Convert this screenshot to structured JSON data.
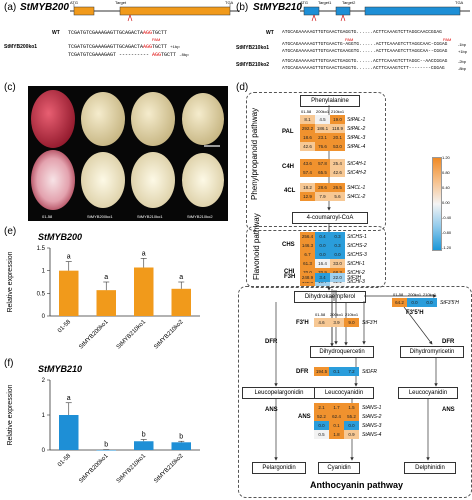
{
  "panels": {
    "a": {
      "label": "(a)",
      "gene": "StMYB200",
      "atg": "ATG",
      "tga": "TGA",
      "target": "Target",
      "wt_label": "WT",
      "wt_seq": "TCGATGTCGAAAGAGTTGCAGACTA",
      "wt_pam": "AGG",
      "wt_end": "TGCTT",
      "pam": "PAM",
      "ko_label": "StMYB200ko1",
      "ko_seq1": "TCGATGTCGAAAGAGTTGCAGACTA",
      "ko_pam1": "AGG",
      "ko_end1": "TGCTT",
      "ko_note1": "+1bp",
      "ko_seq2": "TCGATGTCGAAAGAGT ---------- ",
      "ko_pam2": "AGG",
      "ko_end2": "TGCTT",
      "ko_note2": "-8bp"
    },
    "b": {
      "label": "(b)",
      "gene": "StMYB210",
      "atg": "ATG",
      "tga": "TGA",
      "target1": "Target1",
      "target2": "Target2",
      "wt_label": "WT",
      "wt_seq": "ATGCAGAAAAAGTTGTGAACTGAGGTG......ACTTCAAAGTCTTAGGCAACCGGAG",
      "pam": "PAM",
      "ko1_label": "StMYB210ko1",
      "ko1_seq1": "ATGCAGAAAAAGTTGTGAACTG-AGGTG......ACTTCAAAGTCTTAGGCAAC-CGGAG",
      "ko1_seq2": "ATGCAGAAAAAGTTGTGAACTGAAGGTG......ACTTCAAAGTCTTAGGCAA--CGGAG",
      "ko1_note1": "-1bp",
      "ko1_note2": "+1bp",
      "ko2_label": "StMYB210ko2",
      "ko2_seq1": "ATGCAGAAAAAGTTGTGAACTGAGGTG......ACTTCAAAGTCTTAGGC--AACCGGAG",
      "ko2_seq2": "ATGCAGAAAAAGTTGTGAACTGAGGTG......ACTTCAAAGTCTT--------CGGAG",
      "ko2_note1": "-2bp",
      "ko2_note2": "-8bp"
    },
    "c": {
      "label": "(c)",
      "tubers": [
        "01-58",
        "StMYB200ko1",
        "StMYB210ko1",
        "StMYB210ko2"
      ]
    },
    "d": {
      "label": "(d)",
      "pathway1": "Phenylpropanoid pathway",
      "pathway2": "Flavonoid pathway",
      "pathway3": "Anthocyanin pathway",
      "metabolites": {
        "phe": "Phenylalanine",
        "coa": "4-coumaroyl-CoA",
        "dhk": "Dihydrokaempferol",
        "dhq": "Dihydroquercetin",
        "dhm": "Dihydromyricetin",
        "lpel": "Leucopelargonidin",
        "lcya": "Leucocyanidin",
        "ldel": "Leucocyanidin",
        "pel": "Pelargonidin",
        "cya": "Cyanidin",
        "del": "Delphinidin"
      },
      "enzymes": [
        "PAL",
        "C4H",
        "4CL",
        "CHS",
        "CHI",
        "F3H",
        "F3'H",
        "F3'5'H",
        "DFR",
        "DFR",
        "DFR",
        "ANS",
        "ANS",
        "ANS"
      ],
      "col_heads": [
        "01-58",
        "200ko1",
        "210ko1"
      ],
      "legend": {
        "max": "1.20",
        "v1": "0.80",
        "v2": "0.40",
        "v3": "0.00",
        "v4": "-0.40",
        "v5": "-0.80",
        "min": "-1.20"
      },
      "pal": {
        "genes": [
          "StPAL-1",
          "StPAL-2",
          "StPAL-3",
          "StPAL-4"
        ],
        "vals": [
          [
            "8.1",
            "4.5",
            "19.0"
          ],
          [
            "292.2",
            "186.1",
            "118.9"
          ],
          [
            "18.6",
            "23.1",
            "20.1"
          ],
          [
            "42.6",
            "76.6",
            "53.0"
          ]
        ]
      },
      "c4h": {
        "genes": [
          "StC4H-1",
          "StC4H-2"
        ],
        "vals": [
          [
            "43.6",
            "57.8",
            "25.4"
          ],
          [
            "57.4",
            "65.5",
            "42.6"
          ]
        ]
      },
      "fourcl": {
        "genes": [
          "St4CL-1",
          "St4CL-2"
        ],
        "vals": [
          [
            "18.2",
            "28.6",
            "26.5"
          ],
          [
            "12.9",
            "7.9",
            "5.6"
          ]
        ]
      },
      "chs": {
        "genes": [
          "StCHS-1",
          "StCHS-2",
          "StCHS-3"
        ],
        "vals": [
          [
            "256.4",
            "0.4",
            "0.3"
          ],
          [
            "146.3",
            "0.0",
            "0.3"
          ],
          [
            "6.7",
            "0.0",
            "0.0"
          ]
        ]
      },
      "chi": {
        "genes": [
          "StCHI-1",
          "StCHI-2",
          "StCHI-3"
        ],
        "vals": [
          [
            "61.3",
            "16.4",
            "33.0"
          ],
          [
            "70.0",
            "70.9",
            "68.3"
          ],
          [
            "192.6",
            "19.7",
            "52.2"
          ]
        ]
      },
      "f3h": {
        "genes": [
          "StF3H"
        ],
        "vals": [
          [
            "248.9",
            "3.4",
            "22.0"
          ]
        ]
      },
      "f35h": {
        "genes": [
          "StF3'5'H"
        ],
        "vals": [
          [
            "64.2",
            "0.0",
            "0.0"
          ]
        ]
      },
      "f3ph": {
        "genes": [
          "StF3'H"
        ],
        "vals": [
          [
            "4.6",
            "3.9",
            "9.0"
          ]
        ]
      },
      "dfr": {
        "genes": [
          "StDFR"
        ],
        "vals": [
          [
            "194.5",
            "0.1",
            "7.2"
          ]
        ]
      },
      "ans": {
        "genes": [
          "StANS-1",
          "StANS-2",
          "StANS-3",
          "StANS-4"
        ],
        "vals": [
          [
            "2.1",
            "1.7",
            "1.5"
          ],
          [
            "52.2",
            "62.4",
            "55.2"
          ],
          [
            "0.0",
            "0.1",
            "0.0"
          ],
          [
            "0.5",
            "1.8",
            "0.9"
          ]
        ]
      }
    },
    "e": {
      "label": "(e)",
      "gene": "StMYB200",
      "ylabel": "Relative expression"
    },
    "f": {
      "label": "(f)",
      "gene": "StMYB210",
      "ylabel": "Relative expression"
    }
  },
  "chart_data": [
    {
      "type": "bar",
      "title": "StMYB200",
      "ylabel": "Relative expression",
      "categories": [
        "01-58",
        "StMYB200ko1",
        "StMYB210ko1",
        "StMYB210ko2"
      ],
      "values": [
        1.0,
        0.57,
        1.07,
        0.6
      ],
      "errors": [
        0.2,
        0.18,
        0.2,
        0.15
      ],
      "letters": [
        "a",
        "a",
        "a",
        "a"
      ],
      "yticks": [
        "0",
        "0.5",
        "1",
        "1.5"
      ],
      "ylim": [
        0,
        1.5
      ],
      "color": "#f19a1b"
    },
    {
      "type": "bar",
      "title": "StMYB210",
      "ylabel": "Relative expression",
      "categories": [
        "01-58",
        "StMYB200ko1",
        "StMYB210ko1",
        "StMYB210ko2"
      ],
      "values": [
        1.0,
        0.0,
        0.25,
        0.22
      ],
      "errors": [
        0.35,
        0.01,
        0.05,
        0.03
      ],
      "letters": [
        "a",
        "b",
        "b",
        "b"
      ],
      "yticks": [
        "0",
        "1",
        "2"
      ],
      "ylim": [
        0,
        2
      ],
      "color": "#1e8fd6"
    }
  ]
}
